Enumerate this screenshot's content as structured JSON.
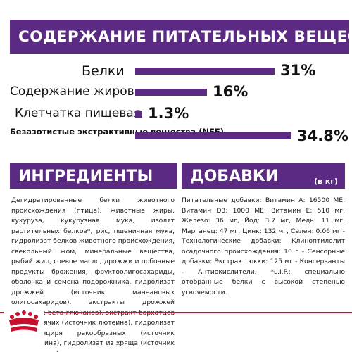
{
  "nutrients": {
    "title": "СОДЕРЖАНИЕ ПИТАТЕЛЬНЫХ ВЕЩЕСТВ",
    "rows": [
      {
        "label": "Белки",
        "value": "31%",
        "amount": 31
      },
      {
        "label": "Содержание жиров",
        "value": "16%",
        "amount": 16
      },
      {
        "label": "Клетчатка пищевая",
        "value": "1.3%",
        "amount": 1.3
      },
      {
        "label": "Безазотистые экстрактивные вещества (NFE)",
        "value": "34.8%",
        "amount": 34.8
      }
    ]
  },
  "ingredients": {
    "title": "ИНГРЕДИЕНТЫ",
    "text": "Дегидратированные белки животного происхождения (птица), животные жиры, кукуруза, кукурузная мука, изолят растительных белков*, рис, пшеничная мука, гидролизат белков животного происхождения, свекольный жом, минеральные вещества, рыбий жир, соевое масло, дрожжи и побочные продукты брожения, фруктоолигосахариды, оболочка и семена подорожника, гидролизат дрожжей (источник маннановых олигосахаридов), экстракты дрожжей (источник бета-глюканов), экстракт бархатцев прямостоячих (источник лютеина), гидролизат из панциря ракообразных (источник глюкозамина), гидролизат из хряща (источник хондроитина)."
  },
  "additives": {
    "title": "ДОБАВКИ",
    "unit": "(в кг)",
    "text": "Питательные добавки: Витамин А: 16500 МЕ, Витамин D3: 1000 МЕ, Витамин Е: 510 мг, Железо: 36 мг, Йод: 3,7 мг, Медь: 11 мг, Марганец: 47 мг, Цинк: 132 мг, Селен: 0.06 мг - Технологические добавки: Клиноптилолит осадочного происхождения: 10 г - Сенсорные добавки: Экстракт юкки: 125 мг - Консерванты - Антиокислители. *L.I.P.: специально отобранные белки с высокой степенью усвояемости."
  },
  "colors": {
    "primary": "#5b2b83",
    "brand_red": "#c8102e",
    "text": "#1a1a1a"
  },
  "brand": {
    "logo_icon": "royal-canin-crown-icon"
  }
}
